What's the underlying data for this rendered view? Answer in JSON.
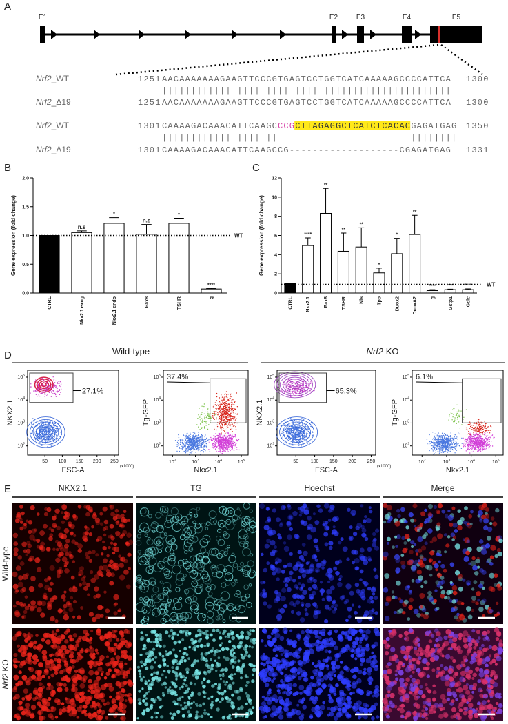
{
  "panel_labels": [
    "A",
    "B",
    "C",
    "D",
    "E"
  ],
  "panel_a": {
    "exons": [
      "E1",
      "E2",
      "E3",
      "E4",
      "E5"
    ],
    "alignment": [
      {
        "gene": "Nrf2",
        "allele": "_WT",
        "start": 1251,
        "segments": [
          {
            "text": "AACAAAAAAAGAAGTTCCCGTGAGTCCTGGTCATCAAAAAGCCCCATTCA"
          }
        ],
        "end": 1300
      },
      {
        "gene": "Nrf2",
        "allele": "_Δ19",
        "start": 1251,
        "segments": [
          {
            "text": "AACAAAAAAAGAAGTTCCCGTGAGTCCTGGTCATCAAAAAGCCCCATTCA"
          }
        ],
        "end": 1300
      },
      {
        "gene": "Nrf2",
        "allele": "_WT",
        "start": 1301,
        "segments": [
          {
            "text": "CAAAAGACAAACATTCAAGC"
          },
          {
            "text": "CCG",
            "color": "#d63fa6"
          },
          {
            "text": "CTTAGAGGCTCATCTCACAC",
            "highlight": "#ffe81a"
          },
          {
            "text": "GAGATGAG"
          }
        ],
        "end": 1350
      },
      {
        "gene": "Nrf2",
        "allele": "_Δ19",
        "start": 1301,
        "segments": [
          {
            "text": "CAAAAGACAAACATTCAAGCCG-------------------CGAGATGAG"
          }
        ],
        "end": 1331
      }
    ],
    "matches": [
      "||||||||||||||||||||||||||||||||||||||||||||||||||",
      "||||||||||||||||||||                       ||||||||"
    ]
  },
  "chart_data": [
    {
      "type": "bar",
      "ylabel": "Gene expression (fold change)",
      "categories": [
        "CTRL",
        "Nkx2.1 exog",
        "Nkx2.1 endo",
        "Pax8",
        "TSHR",
        "Tg"
      ],
      "values": [
        1.0,
        1.05,
        1.21,
        1.02,
        1.21,
        0.07
      ],
      "errors": [
        0,
        0.03,
        0.1,
        0.17,
        0.09,
        0.01
      ],
      "significance": [
        null,
        "n.s",
        "*",
        "n.s",
        "*",
        "****"
      ],
      "colors": [
        "#000000",
        "#ffffff",
        "#ffffff",
        "#ffffff",
        "#ffffff",
        "#ffffff"
      ],
      "ylim": [
        0,
        2
      ],
      "yticks": [
        {
          "value": 0,
          "label": "0.0"
        },
        {
          "value": 0.5,
          "label": "0.5"
        },
        {
          "value": 1,
          "label": "1.0"
        },
        {
          "value": 1.5,
          "label": "1.5"
        },
        {
          "value": 2,
          "label": "2.0"
        }
      ],
      "reference_line": {
        "value": 1,
        "label": "WT"
      }
    },
    {
      "type": "bar",
      "ylabel": "Gene expression (fold change)",
      "categories": [
        "CTRL",
        "Nkx2.1",
        "Pax8",
        "TSHR",
        "Nis",
        "Tpo",
        "Duox2",
        "DuoxA2",
        "Tg",
        "Gstp1",
        "Gclc"
      ],
      "values": [
        1.0,
        4.95,
        8.3,
        4.35,
        4.8,
        2.1,
        4.1,
        6.1,
        0.25,
        0.35,
        0.35
      ],
      "errors": [
        0,
        0.8,
        2.6,
        1.9,
        2.0,
        0.5,
        1.6,
        2.0,
        0.1,
        0.05,
        0.08
      ],
      "significance": [
        null,
        "****",
        "**",
        "**",
        "**",
        "*",
        "*",
        "**",
        "****",
        "****",
        "****"
      ],
      "colors": [
        "#000000",
        "#ffffff",
        "#ffffff",
        "#ffffff",
        "#ffffff",
        "#ffffff",
        "#ffffff",
        "#ffffff",
        "#ffffff",
        "#ffffff",
        "#ffffff"
      ],
      "ylim": [
        0,
        12
      ],
      "yticks": [
        0,
        2,
        4,
        6,
        8,
        10,
        12
      ],
      "reference_line": {
        "value": 0.9,
        "label": "WT"
      }
    }
  ],
  "panel_d": {
    "groups": [
      {
        "text": "Wild-type"
      },
      {
        "gene": "Nrf2",
        "suffix": " KO"
      }
    ],
    "fsc_ticks": [
      50,
      100,
      150,
      200,
      250
    ],
    "fsc_unit": "(x1000)",
    "log_base": "10",
    "log_exponents": [
      2,
      3,
      4,
      5
    ],
    "plots": [
      {
        "xlabel": "FSC-A",
        "ylabel": "NKX2.1",
        "gate": "27.1%",
        "style": "contour"
      },
      {
        "xlabel": "Nkx2.1",
        "ylabel": "Tg-GFP",
        "gate": "37.4%",
        "style": "dots"
      },
      {
        "xlabel": "FSC-A",
        "ylabel": "NKX2.1",
        "gate": "65.3%",
        "style": "contour"
      },
      {
        "xlabel": "Nkx2.1",
        "ylabel": "Tg-GFP",
        "gate": "6.1%",
        "style": "dots"
      }
    ]
  },
  "panel_e": {
    "columns": [
      "NKX2.1",
      "TG",
      "Hoechst",
      "Merge"
    ],
    "rows": [
      {
        "text": "Wild-type"
      },
      {
        "gene": "Nrf2",
        "suffix": " KO"
      }
    ]
  }
}
